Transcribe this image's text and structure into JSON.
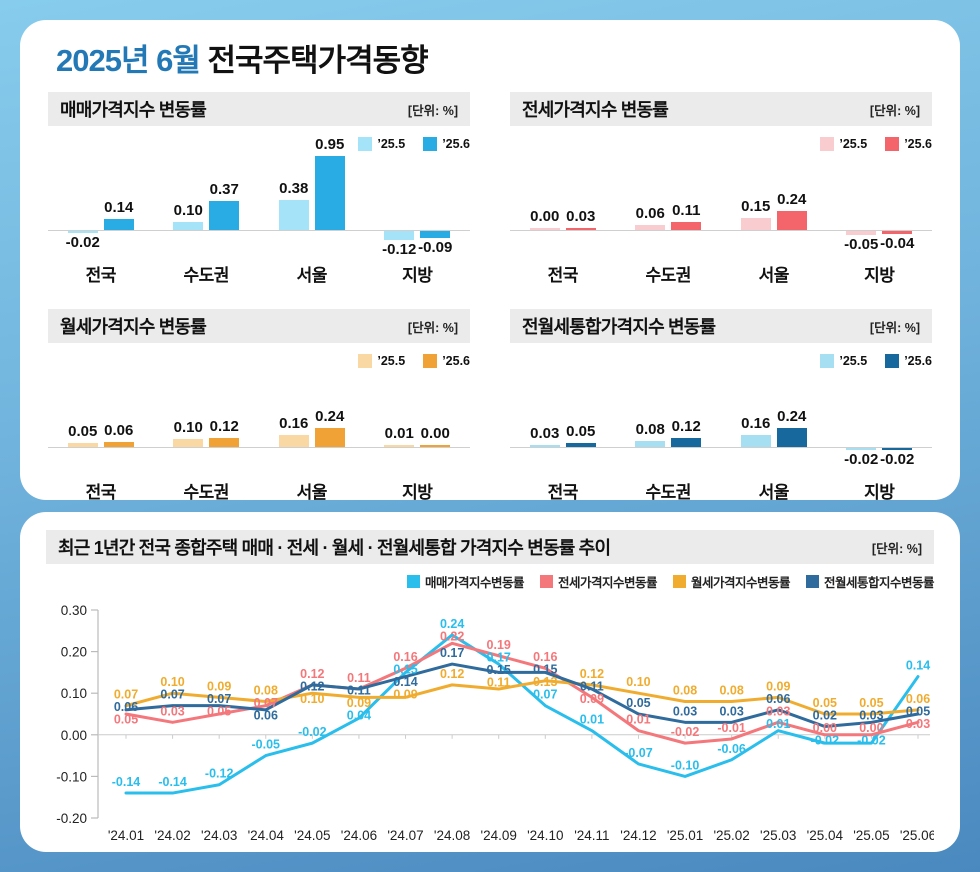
{
  "page": {
    "title_highlight": "2025년 6월",
    "title_rest": "전국주택가격동향"
  },
  "chart_data": [
    {
      "type": "bar",
      "id": "sale-price-index",
      "title": "매매가격지수 변동률",
      "unit": "[단위: %]",
      "categories": [
        "전국",
        "수도권",
        "서울",
        "지방"
      ],
      "series": [
        {
          "name": "’25.5",
          "color": "#A5E3F9",
          "values": [
            -0.02,
            0.1,
            0.38,
            -0.12
          ]
        },
        {
          "name": "’25.6",
          "color": "#29ACE3",
          "values": [
            0.14,
            0.37,
            0.95,
            -0.09
          ]
        }
      ]
    },
    {
      "type": "bar",
      "id": "jeonse-price-index",
      "title": "전세가격지수 변동률",
      "unit": "[단위: %]",
      "categories": [
        "전국",
        "수도권",
        "서울",
        "지방"
      ],
      "series": [
        {
          "name": "’25.5",
          "color": "#F9CDD0",
          "values": [
            0.0,
            0.06,
            0.15,
            -0.05
          ]
        },
        {
          "name": "’25.6",
          "color": "#F4646B",
          "values": [
            0.03,
            0.11,
            0.24,
            -0.04
          ]
        }
      ]
    },
    {
      "type": "bar",
      "id": "wolse-price-index",
      "title": "월세가격지수 변동률",
      "unit": "[단위: %]",
      "categories": [
        "전국",
        "수도권",
        "서울",
        "지방"
      ],
      "series": [
        {
          "name": "’25.5",
          "color": "#FAD8A3",
          "values": [
            0.05,
            0.1,
            0.16,
            0.01
          ]
        },
        {
          "name": "’25.6",
          "color": "#F1A237",
          "values": [
            0.06,
            0.12,
            0.24,
            0.0
          ]
        }
      ]
    },
    {
      "type": "bar",
      "id": "jeonwolse-combined-price-index",
      "title": "전월세통합가격지수 변동률",
      "unit": "[단위: %]",
      "categories": [
        "전국",
        "수도권",
        "서울",
        "지방"
      ],
      "series": [
        {
          "name": "’25.5",
          "color": "#A6DEF2",
          "values": [
            0.03,
            0.08,
            0.16,
            -0.02
          ]
        },
        {
          "name": "’25.6",
          "color": "#17689C",
          "values": [
            0.05,
            0.12,
            0.24,
            -0.02
          ]
        }
      ]
    },
    {
      "type": "line",
      "id": "one-year-trend",
      "title": "최근 1년간 전국 종합주택 매매 · 전세 · 월세 · 전월세통합 가격지수 변동률 추이",
      "unit": "[단위: %]",
      "x": [
        "'24.01",
        "'24.02",
        "'24.03",
        "'24.04",
        "'24.05",
        "'24.06",
        "'24.07",
        "'24.08",
        "'24.09",
        "'24.10",
        "'24.11",
        "'24.12",
        "'25.01",
        "'25.02",
        "'25.03",
        "'25.04",
        "'25.05",
        "'25.06"
      ],
      "ylim": [
        -0.2,
        0.3
      ],
      "yticks": [
        0.3,
        0.2,
        0.1,
        0.0,
        -0.1,
        -0.2
      ],
      "grid": "zero-line-only",
      "legend_position": "top-right",
      "series": [
        {
          "name": "매매가격지수변동률",
          "color": "#29BEEC",
          "values": [
            -0.14,
            -0.14,
            -0.12,
            -0.05,
            -0.02,
            0.04,
            0.15,
            0.24,
            0.17,
            0.07,
            0.01,
            -0.07,
            -0.1,
            -0.06,
            0.01,
            -0.02,
            -0.02,
            0.14
          ]
        },
        {
          "name": "전세가격지수변동률",
          "color": "#F4777B",
          "values": [
            0.05,
            0.03,
            0.05,
            0.07,
            0.12,
            0.11,
            0.16,
            0.22,
            0.19,
            0.16,
            0.09,
            0.01,
            -0.02,
            -0.01,
            0.03,
            0.0,
            0.0,
            0.03
          ]
        },
        {
          "name": "월세가격지수변동률",
          "color": "#F0AC2F",
          "values": [
            0.07,
            0.1,
            0.09,
            0.08,
            0.1,
            0.09,
            0.09,
            0.12,
            0.11,
            0.13,
            0.12,
            0.1,
            0.08,
            0.08,
            0.09,
            0.05,
            0.05,
            0.06
          ]
        },
        {
          "name": "전월세통합지수변동률",
          "color": "#2F6B9C",
          "values": [
            0.06,
            0.07,
            0.07,
            0.06,
            0.12,
            0.11,
            0.14,
            0.17,
            0.15,
            0.15,
            0.11,
            0.05,
            0.03,
            0.03,
            0.06,
            0.02,
            0.03,
            0.05
          ]
        }
      ]
    }
  ]
}
